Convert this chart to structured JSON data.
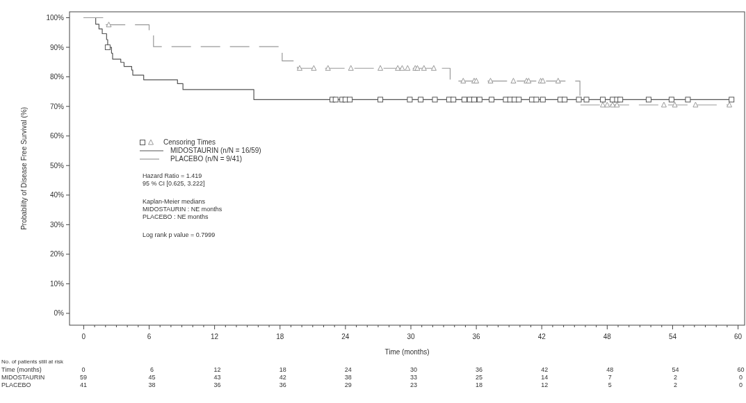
{
  "chart_data": {
    "type": "step",
    "xlabel": "Time (months)",
    "ylabel": "Probability of Disease Free Survival (%)",
    "legend": "center left",
    "grid": false,
    "xlim": [
      -1.3,
      60.6
    ],
    "xticks": [
      0,
      6,
      12,
      18,
      24,
      30,
      36,
      42,
      48,
      54,
      60,
      {
        "value": 1,
        "label": null
      },
      {
        "value": 2,
        "label": null
      },
      {
        "value": 3,
        "label": null
      },
      {
        "value": 4,
        "label": null
      },
      {
        "value": 5,
        "label": null
      },
      {
        "value": 7,
        "label": null
      },
      {
        "value": 8,
        "label": null
      },
      {
        "value": 9,
        "label": null
      },
      {
        "value": 10,
        "label": null
      },
      {
        "value": 11,
        "label": null
      },
      {
        "value": 13,
        "label": null
      },
      {
        "value": 14,
        "label": null
      },
      {
        "value": 15,
        "label": null
      },
      {
        "value": 16,
        "label": null
      },
      {
        "value": 17,
        "label": null
      },
      {
        "value": 19,
        "label": null
      },
      {
        "value": 20,
        "label": null
      },
      {
        "value": 21,
        "label": null
      },
      {
        "value": 22,
        "label": null
      },
      {
        "value": 23,
        "label": null
      },
      {
        "value": 25,
        "label": null
      },
      {
        "value": 26,
        "label": null
      },
      {
        "value": 27,
        "label": null
      },
      {
        "value": 28,
        "label": null
      },
      {
        "value": 29,
        "label": null
      },
      {
        "value": 31,
        "label": null
      },
      {
        "value": 32,
        "label": null
      },
      {
        "value": 33,
        "label": null
      },
      {
        "value": 34,
        "label": null
      },
      {
        "value": 35,
        "label": null
      },
      {
        "value": 37,
        "label": null
      },
      {
        "value": 38,
        "label": null
      },
      {
        "value": 39,
        "label": null
      },
      {
        "value": 40,
        "label": null
      },
      {
        "value": 41,
        "label": null
      },
      {
        "value": 43,
        "label": null
      },
      {
        "value": 44,
        "label": null
      },
      {
        "value": 45,
        "label": null
      },
      {
        "value": 46,
        "label": null
      },
      {
        "value": 47,
        "label": null
      },
      {
        "value": 49,
        "label": null
      },
      {
        "value": 50,
        "label": null
      },
      {
        "value": 51,
        "label": null
      },
      {
        "value": 52,
        "label": null
      },
      {
        "value": 53,
        "label": null
      },
      {
        "value": 55,
        "label": null
      },
      {
        "value": 56,
        "label": null
      },
      {
        "value": 57,
        "label": null
      },
      {
        "value": 58,
        "label": null
      },
      {
        "value": 59,
        "label": null
      }
    ],
    "ylim": [
      -4,
      102
    ],
    "yticks": [
      {
        "value": 0,
        "label": "0%"
      },
      {
        "value": 10,
        "label": "10%"
      },
      {
        "value": 20,
        "label": "20%"
      },
      {
        "value": 30,
        "label": "30%"
      },
      {
        "value": 40,
        "label": "40%"
      },
      {
        "value": 50,
        "label": "50%"
      },
      {
        "value": 60,
        "label": "60%"
      },
      {
        "value": 70,
        "label": "70%"
      },
      {
        "value": 80,
        "label": "80%"
      },
      {
        "value": 90,
        "label": "90%"
      },
      {
        "value": 100,
        "label": "100%"
      }
    ],
    "series": [
      {
        "name": "MIDOSTAURIN (n/N = 16/59)",
        "line_style": "solid",
        "color": "#555555",
        "x": [
          0,
          1.1,
          1.4,
          1.7,
          2.1,
          2.2,
          2.55,
          2.65,
          3.4,
          3.7,
          4.4,
          4.5,
          5.5,
          8.6,
          9.1,
          15.6,
          59.4
        ],
        "values": [
          100,
          97.8,
          96.2,
          94.6,
          92.6,
          90.0,
          88.0,
          86.0,
          84.9,
          83.5,
          82.3,
          80.6,
          79.0,
          77.7,
          75.7,
          72.3,
          72.3
        ]
      },
      {
        "name": "PLACEBO (n/N = 9/41)",
        "line_style": "dashed",
        "color": "#999999",
        "x": [
          0,
          1.8,
          6.0,
          6.4,
          18.2,
          19.6,
          33.6,
          45.5,
          59.2
        ],
        "values": [
          100,
          97.6,
          95.1,
          90.2,
          85.4,
          82.9,
          78.6,
          70.5,
          70.5
        ]
      },
      {
        "name": "Censoring Times",
        "type": "scatter",
        "marker": "triangle",
        "color": "#999999",
        "x": [
          2.3,
          19.8,
          21.1,
          22.4,
          24.5,
          27.2,
          28.8,
          29.2,
          29.7,
          30.4,
          30.6,
          31.2,
          32.1,
          34.8,
          35.8,
          36.0,
          37.3,
          39.4,
          40.6,
          40.8,
          41.9,
          42.1,
          43.5,
          47.6,
          48.0,
          48.5,
          48.9,
          53.2,
          54.2,
          56.1,
          59.2
        ],
        "values": [
          97.6,
          82.9,
          82.9,
          82.9,
          82.9,
          82.9,
          82.9,
          82.9,
          82.9,
          82.9,
          82.9,
          82.9,
          82.9,
          78.6,
          78.6,
          78.6,
          78.6,
          78.6,
          78.6,
          78.6,
          78.6,
          78.6,
          78.6,
          70.5,
          70.5,
          70.5,
          70.5,
          70.5,
          70.5,
          70.5,
          70.5
        ]
      },
      {
        "type": "scatter",
        "marker": "square",
        "color": "#555555",
        "x": [
          2.2,
          22.8,
          23.1,
          23.7,
          24.0,
          24.4,
          27.2,
          29.9,
          30.9,
          32.2,
          33.5,
          33.9,
          34.9,
          35.4,
          35.8,
          36.3,
          37.4,
          38.7,
          39.1,
          39.5,
          39.9,
          41.1,
          41.5,
          42.1,
          43.7,
          44.1,
          45.4,
          46.1,
          47.6,
          48.5,
          48.9,
          49.2,
          51.8,
          53.9,
          55.4,
          59.4
        ],
        "values": [
          90.0,
          72.3,
          72.3,
          72.3,
          72.3,
          72.3,
          72.3,
          72.3,
          72.3,
          72.3,
          72.3,
          72.3,
          72.3,
          72.3,
          72.3,
          72.3,
          72.3,
          72.3,
          72.3,
          72.3,
          72.3,
          72.3,
          72.3,
          72.3,
          72.3,
          72.3,
          72.3,
          72.3,
          72.3,
          72.3,
          72.3,
          72.3,
          72.3,
          72.3,
          72.3,
          72.3
        ]
      }
    ],
    "annotations": [
      "Hazard Ratio = 1.419",
      "95 % CI [0.625, 3.222]",
      "Kaplan-Meier medians",
      "MIDOSTAURIN : NE months",
      "PLACEBO : NE months",
      "Log rank p value = 0.7999",
      "No. of patients still at risk",
      "Time (months)",
      "0",
      "6",
      "12",
      "18",
      "24",
      "30",
      "36",
      "42",
      "48",
      "54",
      "60",
      "MIDOSTAURIN",
      "59",
      "45",
      "43",
      "42",
      "38",
      "33",
      "25",
      "14",
      "7",
      "2",
      "0",
      "PLACEBO",
      "41",
      "38",
      "36",
      "36",
      "29",
      "23",
      "18",
      "12",
      "5",
      "2",
      "0"
    ]
  }
}
